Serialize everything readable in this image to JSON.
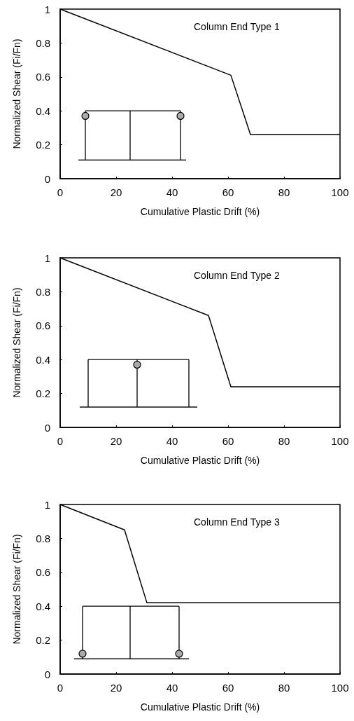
{
  "chart_data": [
    {
      "type": "line",
      "title": "Column End Type 1",
      "xlabel": "Cumulative Plastic Drift (%)",
      "ylabel": "Normalized Shear (Fi/Fn)",
      "x": [
        0,
        61,
        68,
        100
      ],
      "values": [
        1,
        0.61,
        0.26,
        0.26
      ],
      "color": "#000000",
      "xlim": [
        0,
        100
      ],
      "xticks": [
        0,
        20,
        40,
        60,
        80,
        100
      ],
      "ylim": [
        0,
        1
      ],
      "yticks": [
        0,
        0.2,
        0.4,
        0.6,
        0.8,
        1
      ],
      "marker": "none",
      "line_style": "solid"
    },
    {
      "type": "line",
      "title": "Column End Type 2",
      "xlabel": "Cumulative Plastic Drift (%)",
      "ylabel": "Normalized Shear (Fi/Fn)",
      "x": [
        0,
        53,
        61,
        100
      ],
      "values": [
        1,
        0.66,
        0.24,
        0.24
      ],
      "color": "#000000",
      "xlim": [
        0,
        100
      ],
      "xticks": [
        0,
        20,
        40,
        60,
        80,
        100
      ],
      "ylim": [
        0,
        1
      ],
      "yticks": [
        0,
        0.2,
        0.4,
        0.6,
        0.8,
        1
      ],
      "marker": "none",
      "line_style": "solid"
    },
    {
      "type": "line",
      "title": "Column End Type 3",
      "xlabel": "Cumulative Plastic Drift (%)",
      "ylabel": "Normalized Shear (Fi/Fn)",
      "x": [
        0,
        23,
        31,
        100
      ],
      "values": [
        1,
        0.85,
        0.42,
        0.42
      ],
      "color": "#000000",
      "xlim": [
        0,
        100
      ],
      "xticks": [
        0,
        20,
        40,
        60,
        80,
        100
      ],
      "ylim": [
        0,
        1
      ],
      "yticks": [
        0,
        0.2,
        0.4,
        0.6,
        0.8,
        1
      ],
      "marker": "none",
      "line_style": "solid"
    }
  ]
}
